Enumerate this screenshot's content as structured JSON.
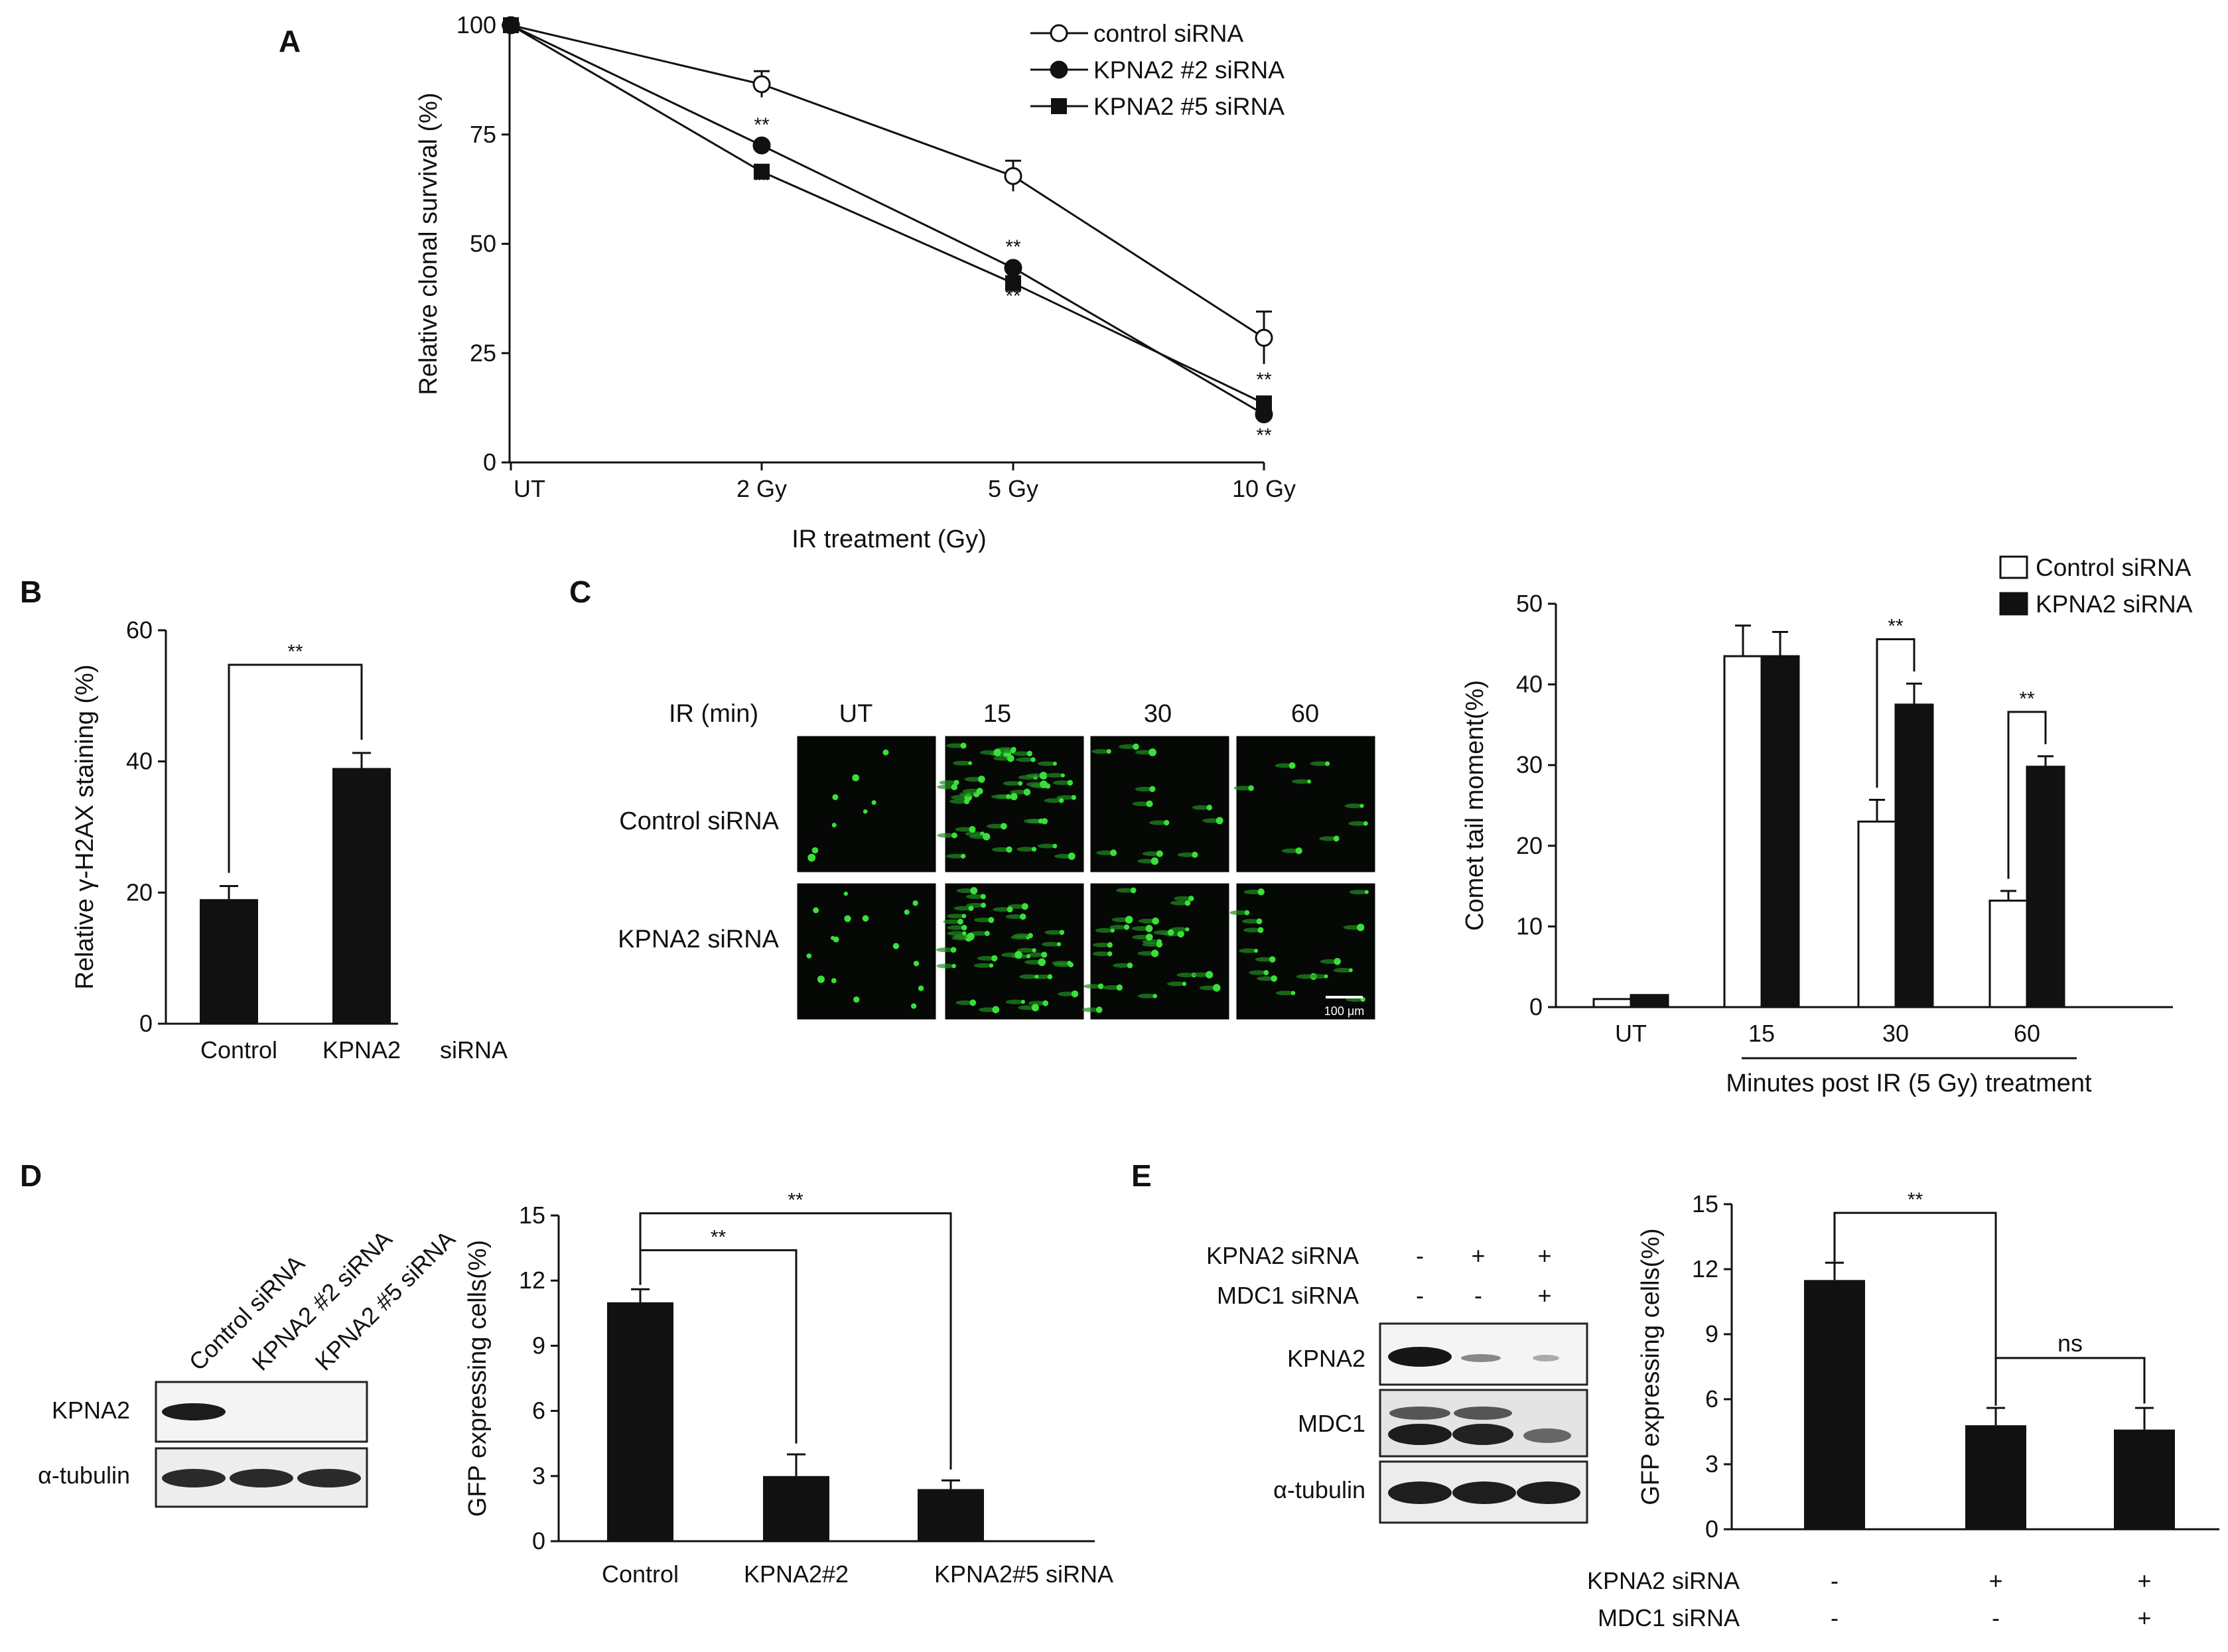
{
  "panels": {
    "a": {
      "label": "A"
    },
    "b": {
      "label": "B"
    },
    "c": {
      "label": "C",
      "ir_label": "IR (min)",
      "columns": [
        "UT",
        "15",
        "30",
        "60"
      ],
      "rows": [
        "Control siRNA",
        "KPNA2 siRNA"
      ],
      "scale_bar": "100 μm"
    },
    "d": {
      "label": "D",
      "blot_columns": [
        "Control siRNA",
        "KPNA2 #2 siRNA",
        "KPNA2 #5 siRNA"
      ],
      "blot_rows": [
        "KPNA2",
        "α-tubulin"
      ]
    },
    "e": {
      "label": "E",
      "blot_conditions": [
        {
          "name": "KPNA2 siRNA",
          "signs": [
            "-",
            "+",
            "+"
          ]
        },
        {
          "name": "MDC1 siRNA",
          "signs": [
            "-",
            "-",
            "+"
          ]
        }
      ],
      "blot_rows": [
        "KPNA2",
        "MDC1",
        "α-tubulin"
      ]
    }
  },
  "chart_data": [
    {
      "id": "A",
      "type": "line",
      "x": [
        "UT",
        "2 Gy",
        "5 Gy",
        "10 Gy"
      ],
      "xlabel": "IR treatment (Gy)",
      "ylabel": "Relative clonal survival (%)",
      "ylim": [
        0,
        100
      ],
      "yticks": [
        0,
        25,
        50,
        75,
        100
      ],
      "series": [
        {
          "name": "control siRNA",
          "marker": "open-circle",
          "values": [
            100,
            86.5,
            65.5,
            28.5
          ],
          "errors": [
            0,
            3,
            3.5,
            6
          ]
        },
        {
          "name": "KPNA2 #2 siRNA",
          "marker": "filled-circle",
          "values": [
            100,
            72.5,
            44.5,
            11
          ],
          "errors": [
            0,
            0,
            0,
            2
          ]
        },
        {
          "name": "KPNA2 #5 siRNA",
          "marker": "filled-square",
          "values": [
            100,
            66.5,
            41,
            13.5
          ],
          "errors": [
            0,
            0,
            0,
            0
          ]
        }
      ],
      "annotations": [
        "**",
        "**",
        "**",
        "**",
        "**",
        "**"
      ]
    },
    {
      "id": "B",
      "type": "bar",
      "categories": [
        "Control",
        "KPNA2"
      ],
      "category_suffix": "siRNA",
      "values": [
        19,
        39
      ],
      "errors": [
        2,
        2.3
      ],
      "ylabel": "Relative γ-H2AX staining (%)",
      "ylim": [
        0,
        60
      ],
      "yticks": [
        0,
        20,
        40,
        60
      ],
      "significance": [
        {
          "from": 0,
          "to": 1,
          "label": "**"
        }
      ]
    },
    {
      "id": "C",
      "type": "bar",
      "categories": [
        "UT",
        "15",
        "30",
        "60"
      ],
      "xlabel": "Minutes post IR (5 Gy) treatment",
      "ylabel": "Comet tail moment(%)",
      "ylim": [
        0,
        50
      ],
      "yticks": [
        0,
        10,
        20,
        30,
        40,
        50
      ],
      "series": [
        {
          "name": "Control siRNA",
          "fill": "white",
          "values": [
            1,
            43.5,
            23,
            13.2
          ],
          "errors": [
            0,
            3.8,
            2.7,
            1.2
          ]
        },
        {
          "name": "KPNA2 siRNA",
          "fill": "black",
          "values": [
            1.5,
            43.5,
            37.5,
            29.8
          ],
          "errors": [
            0,
            3,
            2.6,
            1.3
          ]
        }
      ],
      "significance": [
        {
          "category": 2,
          "label": "**"
        },
        {
          "category": 3,
          "label": "**"
        }
      ]
    },
    {
      "id": "D",
      "type": "bar",
      "categories": [
        "Control",
        "KPNA2#2",
        "KPNA2#5 siRNA"
      ],
      "values": [
        11,
        3,
        2.4
      ],
      "errors": [
        0.6,
        1,
        0.4
      ],
      "ylabel": "GFP expressing cells(%)",
      "ylim": [
        0,
        15
      ],
      "yticks": [
        0,
        3,
        6,
        9,
        12,
        15
      ],
      "significance": [
        {
          "from": 0,
          "to": 1,
          "label": "**"
        },
        {
          "from": 0,
          "to": 2,
          "label": "**"
        }
      ]
    },
    {
      "id": "E",
      "type": "bar",
      "values": [
        11.5,
        4.8,
        4.6
      ],
      "errors": [
        0.8,
        0.8,
        1
      ],
      "ylabel": "GFP expressing cells(%)",
      "ylim": [
        0,
        15
      ],
      "yticks": [
        0,
        3,
        6,
        9,
        12,
        15
      ],
      "conditions": [
        {
          "name": "KPNA2 siRNA",
          "signs": [
            "-",
            "+",
            "+"
          ]
        },
        {
          "name": "MDC1 siRNA",
          "signs": [
            "-",
            "-",
            "+"
          ]
        }
      ],
      "significance": [
        {
          "from": 0,
          "to": 1,
          "label": "**"
        },
        {
          "from": 1,
          "to": 2,
          "label": "ns"
        }
      ]
    }
  ]
}
